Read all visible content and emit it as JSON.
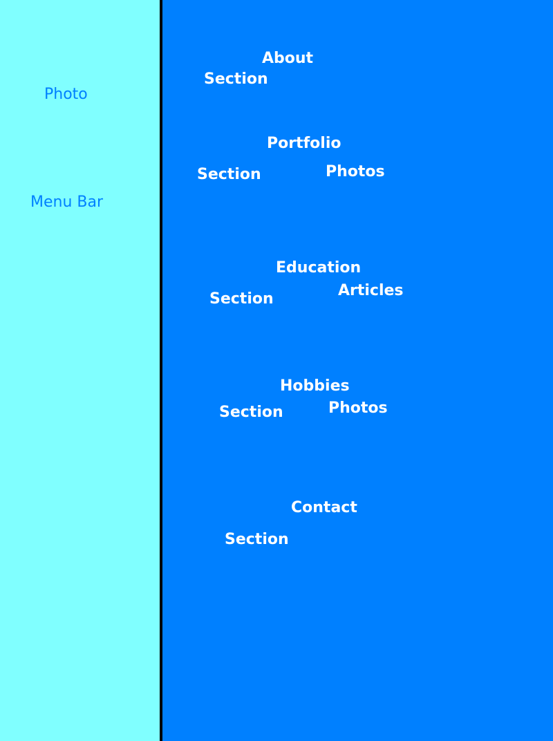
{
  "sidebar": {
    "background_color": "#80ffff",
    "text_color": "#0080ff",
    "photo_label": "Photo",
    "menu_bar_label": "Menu Bar"
  },
  "divider_color": "#000000",
  "main": {
    "background_color": "#0080ff",
    "text_color": "#ffffff",
    "sections": {
      "about": {
        "title": "About",
        "kind": "Section"
      },
      "portfolio": {
        "title": "Portfolio",
        "kind": "Section",
        "extra": "Photos"
      },
      "education": {
        "title": "Education",
        "kind": "Section",
        "extra": "Articles"
      },
      "hobbies": {
        "title": "Hobbies",
        "kind": "Section",
        "extra": "Photos"
      },
      "contact": {
        "title": "Contact",
        "kind": "Section"
      }
    }
  }
}
